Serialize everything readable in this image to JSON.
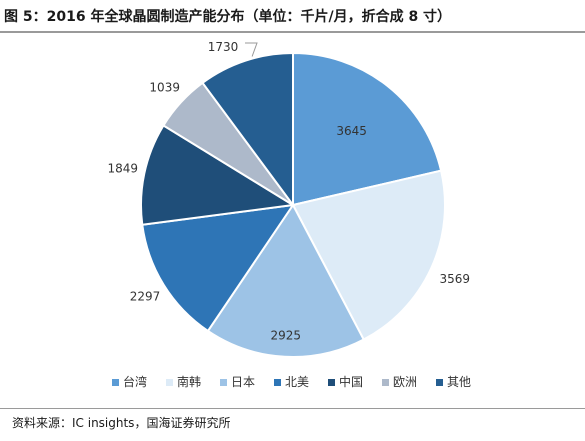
{
  "header": {
    "title": "图 5：2016 年全球晶圆制造产能分布（单位：千片/月，折合成 8 寸）"
  },
  "chart_data": {
    "type": "pie",
    "categories": [
      "台湾",
      "南韩",
      "日本",
      "北美",
      "中国",
      "欧洲",
      "其他"
    ],
    "values": [
      3645,
      3569,
      2925,
      2297,
      1849,
      1039,
      1730
    ],
    "labels": [
      "3645",
      "3569",
      "2925",
      "2297",
      "1849",
      "1039",
      "1730"
    ],
    "colors": [
      "#5B9BD5",
      "#DDEBF7",
      "#9DC3E6",
      "#2E75B6",
      "#1F4E79",
      "#ADB9CA",
      "#255E91"
    ],
    "legend_position": "bottom"
  },
  "footer": {
    "source": "资料来源：IC insights，国海证券研究所"
  }
}
